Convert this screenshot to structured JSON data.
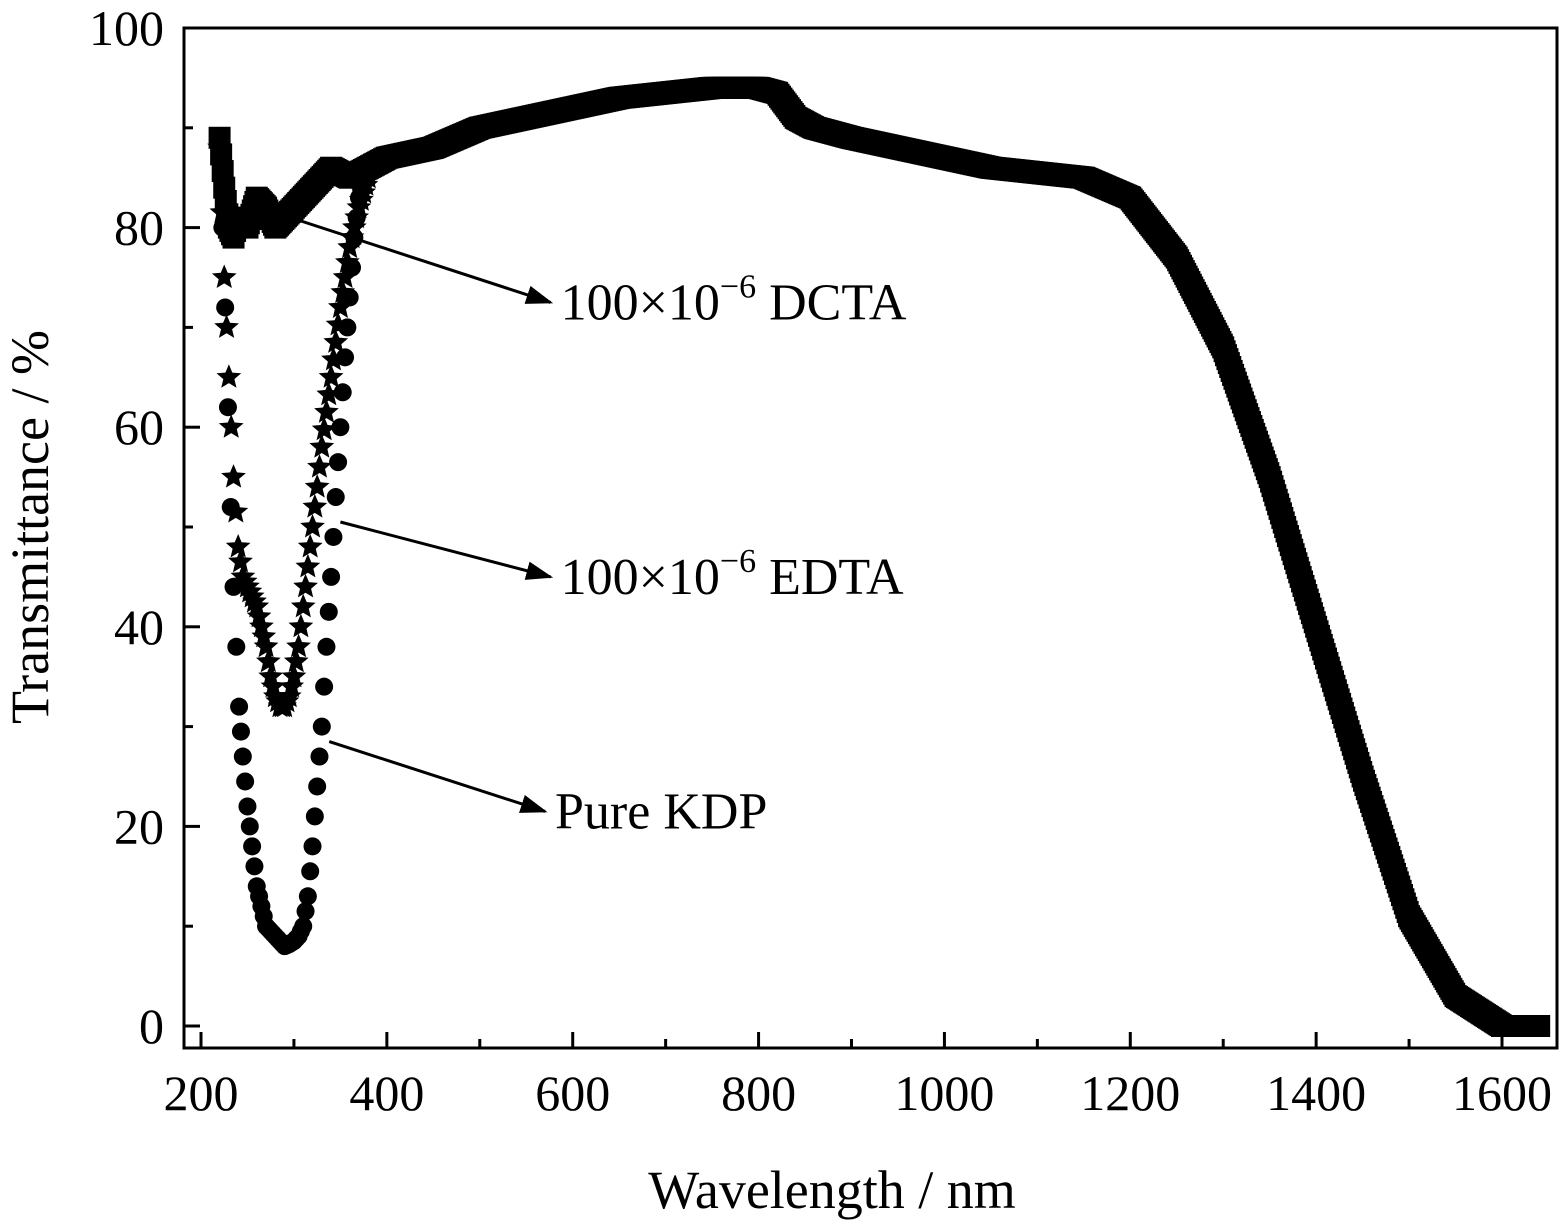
{
  "chart_data": {
    "type": "scatter",
    "title": "",
    "xlabel": "Wavelength / nm",
    "ylabel": "Transmittance / %",
    "xlim": [
      200,
      1650
    ],
    "ylim": [
      -1,
      100
    ],
    "xticks": [
      200,
      400,
      600,
      800,
      1000,
      1200,
      1400,
      1600
    ],
    "yticks": [
      0,
      20,
      40,
      60,
      80,
      100
    ],
    "grid": false,
    "legend": "none",
    "series": [
      {
        "marker": "square",
        "x": [
          220,
          225,
          230,
          235,
          240,
          250,
          260,
          270,
          280,
          290,
          300,
          320,
          340,
          360,
          380,
          400,
          450,
          500,
          550,
          600,
          650,
          700,
          750,
          800,
          820,
          840,
          860,
          900,
          950,
          1000,
          1050,
          1100,
          1150,
          1200,
          1250,
          1300,
          1350,
          1400,
          1450,
          1500,
          1550,
          1600,
          1640
        ],
        "values": [
          89,
          84,
          80,
          79,
          81,
          80,
          83,
          82,
          80,
          81,
          82,
          84,
          86,
          85,
          86,
          87,
          88,
          90,
          91,
          92,
          93,
          93.5,
          94,
          94,
          93.5,
          91,
          90,
          89,
          88,
          87,
          86,
          85.5,
          85,
          83,
          77,
          68,
          55,
          40,
          25,
          11,
          3,
          0,
          0
        ]
      },
      {
        "marker": "star",
        "x": [
          220,
          225,
          230,
          235,
          240,
          245,
          250,
          255,
          260,
          265,
          270,
          275,
          280,
          285,
          290,
          295,
          300,
          305,
          310,
          320,
          330,
          340,
          350,
          360,
          370,
          380
        ],
        "values": [
          88,
          75,
          65,
          55,
          48,
          45,
          44,
          43,
          42,
          40,
          38,
          35,
          33,
          32,
          32,
          33,
          35,
          38,
          42,
          50,
          58,
          65,
          72,
          78,
          82,
          85
        ]
      },
      {
        "marker": "circle",
        "x": [
          220,
          223,
          226,
          229,
          232,
          235,
          238,
          241,
          245,
          250,
          255,
          260,
          265,
          270,
          275,
          280,
          285,
          290,
          295,
          300,
          305,
          310,
          315,
          320,
          325,
          330,
          335,
          340,
          345,
          350,
          355,
          360,
          365,
          370,
          380
        ],
        "values": [
          87,
          80,
          72,
          62,
          52,
          44,
          38,
          32,
          27,
          22,
          18,
          14,
          12,
          10,
          9.5,
          9,
          8.5,
          8,
          8.2,
          8.5,
          9,
          10,
          13,
          18,
          24,
          30,
          38,
          45,
          53,
          60,
          67,
          73,
          79,
          83,
          86
        ]
      }
    ],
    "annotations": [
      {
        "text": "100×10",
        "sup": "−6",
        "rest": " DCTA",
        "arrow_from": [
          280,
          81.5
        ],
        "arrow_to": [
          630,
          72.5
        ]
      },
      {
        "text": "100×10",
        "sup": "−6",
        "rest": " EDTA",
        "arrow_from": [
          350,
          50.5
        ],
        "arrow_to": [
          630,
          45
        ]
      },
      {
        "text": "Pure KDP",
        "sup": "",
        "rest": "",
        "arrow_from": [
          338,
          28.5
        ],
        "arrow_to": [
          624,
          21.5
        ]
      }
    ]
  }
}
